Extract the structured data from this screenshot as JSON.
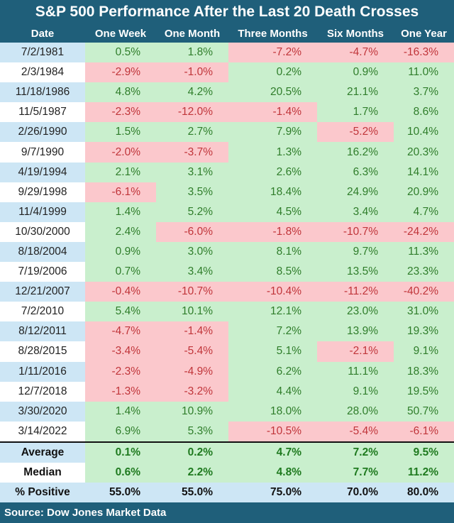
{
  "title": "S&P 500 Performance After the Last 20 Death Crosses",
  "headers": [
    "Date",
    "One Week",
    "One Month",
    "Three Months",
    "Six Months",
    "One Year"
  ],
  "rows": [
    [
      "7/2/1981",
      "0.5%",
      "1.8%",
      "-7.2%",
      "-4.7%",
      "-16.3%"
    ],
    [
      "2/3/1984",
      "-2.9%",
      "-1.0%",
      "0.2%",
      "0.9%",
      "11.0%"
    ],
    [
      "11/18/1986",
      "4.8%",
      "4.2%",
      "20.5%",
      "21.1%",
      "3.7%"
    ],
    [
      "11/5/1987",
      "-2.3%",
      "-12.0%",
      "-1.4%",
      "1.7%",
      "8.6%"
    ],
    [
      "2/26/1990",
      "1.5%",
      "2.7%",
      "7.9%",
      "-5.2%",
      "10.4%"
    ],
    [
      "9/7/1990",
      "-2.0%",
      "-3.7%",
      "1.3%",
      "16.2%",
      "20.3%"
    ],
    [
      "4/19/1994",
      "2.1%",
      "3.1%",
      "2.6%",
      "6.3%",
      "14.1%"
    ],
    [
      "9/29/1998",
      "-6.1%",
      "3.5%",
      "18.4%",
      "24.9%",
      "20.9%"
    ],
    [
      "11/4/1999",
      "1.4%",
      "5.2%",
      "4.5%",
      "3.4%",
      "4.7%"
    ],
    [
      "10/30/2000",
      "2.4%",
      "-6.0%",
      "-1.8%",
      "-10.7%",
      "-24.2%"
    ],
    [
      "8/18/2004",
      "0.9%",
      "3.0%",
      "8.1%",
      "9.7%",
      "11.3%"
    ],
    [
      "7/19/2006",
      "0.7%",
      "3.4%",
      "8.5%",
      "13.5%",
      "23.3%"
    ],
    [
      "12/21/2007",
      "-0.4%",
      "-10.7%",
      "-10.4%",
      "-11.2%",
      "-40.2%"
    ],
    [
      "7/2/2010",
      "5.4%",
      "10.1%",
      "12.1%",
      "23.0%",
      "31.0%"
    ],
    [
      "8/12/2011",
      "-4.7%",
      "-1.4%",
      "7.2%",
      "13.9%",
      "19.3%"
    ],
    [
      "8/28/2015",
      "-3.4%",
      "-5.4%",
      "5.1%",
      "-2.1%",
      "9.1%"
    ],
    [
      "1/11/2016",
      "-2.3%",
      "-4.9%",
      "6.2%",
      "11.1%",
      "18.3%"
    ],
    [
      "12/7/2018",
      "-1.3%",
      "-3.2%",
      "4.4%",
      "9.1%",
      "19.5%"
    ],
    [
      "3/30/2020",
      "1.4%",
      "10.9%",
      "18.0%",
      "28.0%",
      "50.7%"
    ],
    [
      "3/14/2022",
      "6.9%",
      "5.3%",
      "-10.5%",
      "-5.4%",
      "-6.1%"
    ]
  ],
  "summary": [
    [
      "Average",
      "0.1%",
      "0.2%",
      "4.7%",
      "7.2%",
      "9.5%"
    ],
    [
      "Median",
      "0.6%",
      "2.2%",
      "4.8%",
      "7.7%",
      "11.2%"
    ],
    [
      "% Positive",
      "55.0%",
      "55.0%",
      "75.0%",
      "70.0%",
      "80.0%"
    ]
  ],
  "source": "Source: Dow Jones Market Data",
  "colors": {
    "header": "#1f5f7a",
    "positive_bg": "#c9efcd",
    "negative_bg": "#fbc8cc",
    "positive_text": "#2f7d2a",
    "negative_text": "#c0353a"
  }
}
